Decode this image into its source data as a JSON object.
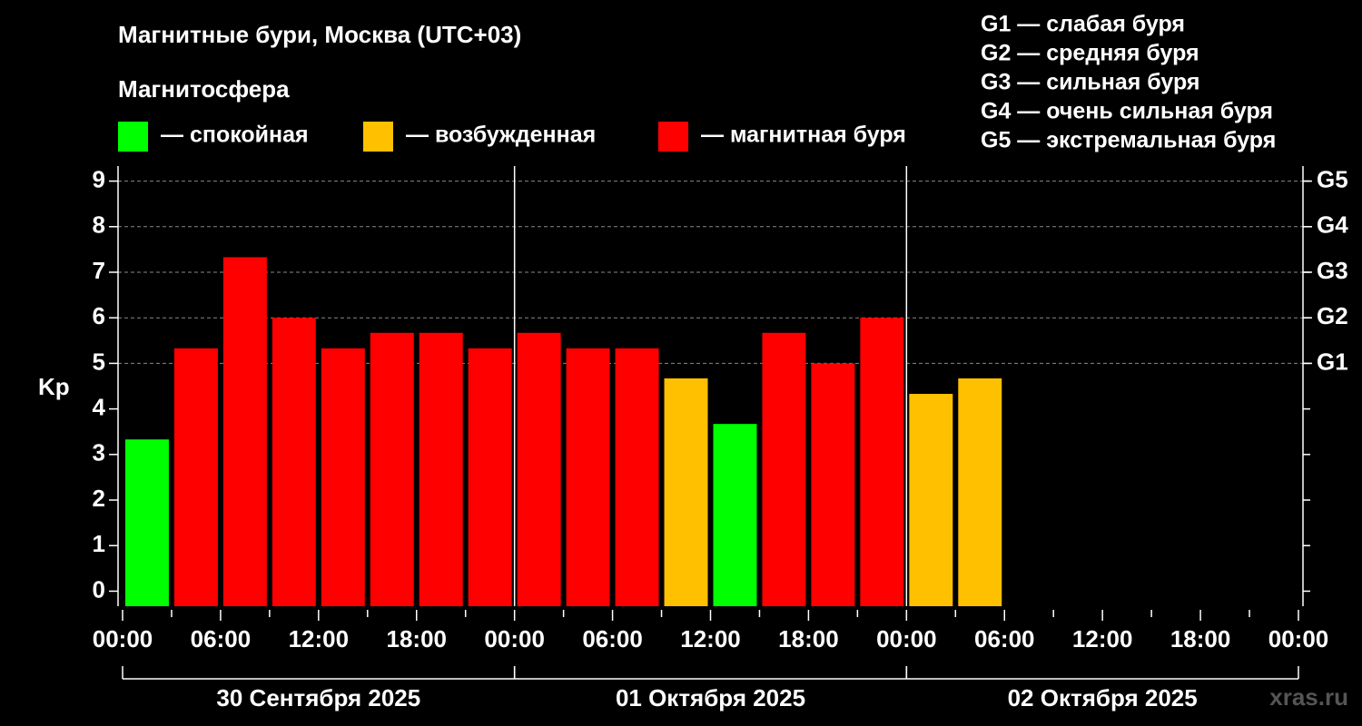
{
  "chart_data": {
    "type": "bar",
    "title": "Магнитные бури, Москва (UTC+03)",
    "subtitle": "Магнитосфера",
    "ylabel": "Kp",
    "watermark": "xras.ru",
    "legend": [
      {
        "label": "— спокойная",
        "color": "#00ff00"
      },
      {
        "label": "— возбужденная",
        "color": "#ffc000"
      },
      {
        "label": "— магнитная буря",
        "color": "#ff0000"
      }
    ],
    "scale_notes": [
      "G1 — слабая буря",
      "G2 — средняя буря",
      "G3 — сильная буря",
      "G4 — очень сильная буря",
      "G5 — экстремальная буря"
    ],
    "x": [
      0,
      3,
      6,
      9,
      12,
      15,
      18,
      21,
      24,
      27,
      30,
      33,
      36,
      39,
      42,
      45,
      48,
      51
    ],
    "bar_width": 3,
    "values": [
      3.33,
      5.33,
      7.33,
      6,
      5.33,
      5.67,
      5.67,
      5.33,
      5.67,
      5.33,
      5.33,
      4.67,
      3.67,
      5.67,
      5,
      6,
      4.33,
      4.67
    ],
    "colors": [
      "#00ff00",
      "#ff0000",
      "#ff0000",
      "#ff0000",
      "#ff0000",
      "#ff0000",
      "#ff0000",
      "#ff0000",
      "#ff0000",
      "#ff0000",
      "#ff0000",
      "#ffc000",
      "#00ff00",
      "#ff0000",
      "#ff0000",
      "#ff0000",
      "#ffc000",
      "#ffc000"
    ],
    "xlim": [
      0,
      72
    ],
    "xticks": [
      {
        "value": 0,
        "label": "00:00"
      },
      {
        "value": 6,
        "label": "06:00"
      },
      {
        "value": 12,
        "label": "12:00"
      },
      {
        "value": 18,
        "label": "18:00"
      },
      {
        "value": 24,
        "label": "00:00"
      },
      {
        "value": 30,
        "label": "06:00"
      },
      {
        "value": 36,
        "label": "12:00"
      },
      {
        "value": 42,
        "label": "18:00"
      },
      {
        "value": 48,
        "label": "00:00"
      },
      {
        "value": 54,
        "label": "06:00"
      },
      {
        "value": 60,
        "label": "12:00"
      },
      {
        "value": 66,
        "label": "18:00"
      },
      {
        "value": 72,
        "label": "00:00"
      }
    ],
    "days": [
      {
        "label": "30 Сентября 2025",
        "start": 0,
        "end": 24
      },
      {
        "label": "01 Октября 2025",
        "start": 24,
        "end": 48
      },
      {
        "label": "02 Октября 2025",
        "start": 48,
        "end": 72
      }
    ],
    "ylim": [
      -0.33,
      9.33
    ],
    "yticks": [
      0,
      1,
      2,
      3,
      4,
      5,
      6,
      7,
      8,
      9
    ],
    "y2lim": [
      -0.33,
      9.33
    ],
    "y2ticks": [
      {
        "value": 5,
        "label": "G1"
      },
      {
        "value": 6,
        "label": "G2"
      },
      {
        "value": 7,
        "label": "G3"
      },
      {
        "value": 8,
        "label": "G4"
      },
      {
        "value": 9,
        "label": "G5"
      }
    ],
    "grid": true
  }
}
